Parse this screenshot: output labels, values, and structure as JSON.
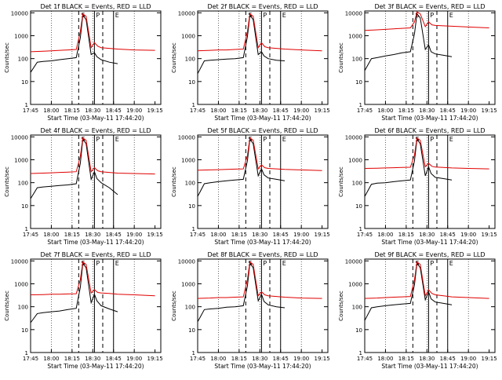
{
  "chart_data": {
    "type": "line",
    "x_tick_labels": [
      "17:45",
      "18:00",
      "18:15",
      "18:30",
      "18:45",
      "19:00",
      "19:15"
    ],
    "y_tick_labels": [
      "1",
      "10",
      "100",
      "1000",
      "10000"
    ],
    "ylabel": "Counts/sec",
    "xlabel": "Start Time (03-May-11 17:44:20)",
    "y_scale": "log",
    "ylim": [
      1,
      12000
    ],
    "grid": "dotted verticals at each x tick",
    "colors": {
      "events": "#000000",
      "lld": "#e00000"
    },
    "markers": {
      "s_label": "S",
      "p_label": "P",
      "e_label": "E"
    },
    "panels": [
      {
        "title": "Det 1f  BLACK = Events, RED = LLD",
        "series": [
          {
            "name": "Events",
            "x": [
              17.75,
              17.83,
              17.9,
              18.0,
              18.1,
              18.2,
              18.3,
              18.35,
              18.38,
              18.42,
              18.48,
              18.52,
              18.55,
              18.6,
              18.7,
              18.8
            ],
            "values": [
              25,
              70,
              75,
              80,
              90,
              100,
              110,
              800,
              8000,
              5000,
              150,
              180,
              120,
              90,
              70,
              60
            ]
          },
          {
            "name": "LLD",
            "x": [
              17.75,
              17.9,
              18.0,
              18.1,
              18.2,
              18.3,
              18.35,
              18.38,
              18.42,
              18.48,
              18.52,
              18.56,
              18.6,
              18.7,
              18.8,
              19.0,
              19.25
            ],
            "values": [
              200,
              210,
              220,
              230,
              240,
              250,
              1500,
              9000,
              7000,
              300,
              500,
              350,
              300,
              280,
              260,
              240,
              230
            ]
          }
        ]
      },
      {
        "title": "Det 2f  BLACK = Events, RED = LLD",
        "series": [
          {
            "name": "Events",
            "x": [
              17.75,
              17.83,
              17.9,
              18.0,
              18.1,
              18.2,
              18.3,
              18.35,
              18.38,
              18.42,
              18.48,
              18.52,
              18.55,
              18.6,
              18.7,
              18.8
            ],
            "values": [
              22,
              80,
              85,
              90,
              95,
              100,
              110,
              900,
              8000,
              5000,
              150,
              200,
              130,
              100,
              85,
              80
            ]
          },
          {
            "name": "LLD",
            "x": [
              17.75,
              17.9,
              18.0,
              18.1,
              18.2,
              18.3,
              18.35,
              18.38,
              18.42,
              18.48,
              18.52,
              18.56,
              18.6,
              18.7,
              18.8,
              19.0,
              19.25
            ],
            "values": [
              220,
              230,
              240,
              240,
              250,
              260,
              1500,
              9000,
              7000,
              300,
              500,
              330,
              300,
              280,
              260,
              240,
              220
            ]
          }
        ]
      },
      {
        "title": "Det 3f  BLACK = Events, RED = LLD",
        "series": [
          {
            "name": "Events",
            "x": [
              17.75,
              17.83,
              17.9,
              18.0,
              18.1,
              18.2,
              18.3,
              18.35,
              18.38,
              18.42,
              18.48,
              18.52,
              18.55,
              18.6,
              18.7,
              18.8
            ],
            "values": [
              30,
              100,
              110,
              130,
              150,
              180,
              200,
              1200,
              9000,
              6000,
              250,
              400,
              200,
              160,
              140,
              120
            ]
          },
          {
            "name": "LLD",
            "x": [
              17.75,
              17.9,
              18.0,
              18.1,
              18.2,
              18.3,
              18.35,
              18.38,
              18.42,
              18.48,
              18.52,
              18.56,
              18.6,
              18.7,
              18.8,
              19.0,
              19.25
            ],
            "values": [
              1700,
              1800,
              1900,
              2000,
              2100,
              2200,
              4000,
              11000,
              9000,
              2500,
              4000,
              3000,
              2800,
              2700,
              2600,
              2400,
              2200
            ]
          }
        ]
      },
      {
        "title": "Det 4f  BLACK = Events, RED = LLD",
        "series": [
          {
            "name": "Events",
            "x": [
              17.75,
              17.83,
              17.9,
              18.0,
              18.1,
              18.2,
              18.3,
              18.35,
              18.38,
              18.42,
              18.48,
              18.52,
              18.55,
              18.6,
              18.7,
              18.8
            ],
            "values": [
              20,
              60,
              65,
              70,
              75,
              80,
              90,
              700,
              8000,
              5000,
              140,
              300,
              150,
              100,
              60,
              30
            ]
          },
          {
            "name": "LLD",
            "x": [
              17.75,
              17.9,
              18.0,
              18.1,
              18.2,
              18.3,
              18.35,
              18.38,
              18.42,
              18.48,
              18.52,
              18.56,
              18.6,
              18.7,
              18.8,
              19.0,
              19.25
            ],
            "values": [
              250,
              260,
              270,
              280,
              290,
              300,
              1400,
              9000,
              7000,
              300,
              450,
              330,
              300,
              280,
              260,
              250,
              240
            ]
          }
        ]
      },
      {
        "title": "Det 5f  BLACK = Events, RED = LLD",
        "series": [
          {
            "name": "Events",
            "x": [
              17.75,
              17.83,
              17.9,
              18.0,
              18.1,
              18.2,
              18.3,
              18.35,
              18.38,
              18.42,
              18.48,
              18.52,
              18.55,
              18.6,
              18.7,
              18.8
            ],
            "values": [
              25,
              90,
              100,
              110,
              120,
              130,
              140,
              900,
              8000,
              5000,
              200,
              400,
              220,
              160,
              140,
              120
            ]
          },
          {
            "name": "LLD",
            "x": [
              17.75,
              17.9,
              18.0,
              18.1,
              18.2,
              18.3,
              18.35,
              18.38,
              18.42,
              18.48,
              18.52,
              18.56,
              18.6,
              18.7,
              18.8,
              19.0,
              19.25
            ],
            "values": [
              350,
              360,
              370,
              380,
              390,
              400,
              1500,
              9000,
              7000,
              400,
              600,
              450,
              420,
              400,
              380,
              360,
              340
            ]
          }
        ]
      },
      {
        "title": "Det 6f  BLACK = Events, RED = LLD",
        "series": [
          {
            "name": "Events",
            "x": [
              17.75,
              17.83,
              17.9,
              18.0,
              18.1,
              18.2,
              18.3,
              18.35,
              18.38,
              18.42,
              18.48,
              18.52,
              18.55,
              18.6,
              18.7,
              18.8
            ],
            "values": [
              25,
              85,
              95,
              100,
              110,
              120,
              130,
              900,
              8000,
              5000,
              200,
              500,
              250,
              170,
              150,
              130
            ]
          },
          {
            "name": "LLD",
            "x": [
              17.75,
              17.9,
              18.0,
              18.1,
              18.2,
              18.3,
              18.35,
              18.38,
              18.42,
              18.48,
              18.52,
              18.56,
              18.6,
              18.7,
              18.8,
              19.0,
              19.25
            ],
            "values": [
              420,
              430,
              440,
              450,
              460,
              470,
              1600,
              9000,
              7000,
              500,
              700,
              520,
              480,
              460,
              440,
              420,
              400
            ]
          }
        ]
      },
      {
        "title": "Det 7f  BLACK = Events, RED = LLD",
        "series": [
          {
            "name": "Events",
            "x": [
              17.75,
              17.83,
              17.9,
              18.0,
              18.1,
              18.2,
              18.3,
              18.35,
              18.38,
              18.42,
              18.48,
              18.52,
              18.55,
              18.6,
              18.7,
              18.8
            ],
            "values": [
              20,
              50,
              55,
              60,
              65,
              75,
              85,
              700,
              8000,
              5000,
              150,
              350,
              180,
              110,
              80,
              60
            ]
          },
          {
            "name": "LLD",
            "x": [
              17.75,
              17.9,
              18.0,
              18.1,
              18.2,
              18.3,
              18.35,
              18.38,
              18.42,
              18.48,
              18.52,
              18.56,
              18.6,
              18.7,
              18.8,
              19.0,
              19.25
            ],
            "values": [
              330,
              340,
              350,
              350,
              360,
              370,
              1500,
              9000,
              7000,
              400,
              550,
              420,
              400,
              380,
              350,
              330,
              300
            ]
          }
        ]
      },
      {
        "title": "Det 8f  BLACK = Events, RED = LLD",
        "series": [
          {
            "name": "Events",
            "x": [
              17.75,
              17.83,
              17.9,
              18.0,
              18.1,
              18.2,
              18.3,
              18.35,
              18.38,
              18.42,
              18.48,
              18.52,
              18.55,
              18.6,
              18.7,
              18.8
            ],
            "values": [
              22,
              75,
              80,
              85,
              95,
              100,
              110,
              800,
              8000,
              5000,
              180,
              350,
              170,
              120,
              100,
              90
            ]
          },
          {
            "name": "LLD",
            "x": [
              17.75,
              17.9,
              18.0,
              18.1,
              18.2,
              18.3,
              18.35,
              18.38,
              18.42,
              18.48,
              18.52,
              18.56,
              18.6,
              18.7,
              18.8,
              19.0,
              19.25
            ],
            "values": [
              230,
              240,
              250,
              250,
              260,
              270,
              1500,
              9000,
              7000,
              300,
              450,
              330,
              300,
              280,
              260,
              240,
              230
            ]
          }
        ]
      },
      {
        "title": "Det 9f  BLACK = Events, RED = LLD",
        "series": [
          {
            "name": "Events",
            "x": [
              17.75,
              17.83,
              17.9,
              18.0,
              18.1,
              18.2,
              18.3,
              18.35,
              18.38,
              18.42,
              18.48,
              18.52,
              18.55,
              18.6,
              18.7,
              18.8
            ],
            "values": [
              25,
              90,
              100,
              110,
              120,
              130,
              140,
              900,
              8000,
              5000,
              200,
              450,
              220,
              160,
              140,
              120
            ]
          },
          {
            "name": "LLD",
            "x": [
              17.75,
              17.9,
              18.0,
              18.1,
              18.2,
              18.3,
              18.35,
              18.38,
              18.42,
              18.48,
              18.52,
              18.56,
              18.6,
              18.7,
              18.8,
              19.0,
              19.25
            ],
            "values": [
              230,
              240,
              250,
              260,
              270,
              280,
              1500,
              9000,
              7000,
              300,
              550,
              380,
              330,
              300,
              270,
              250,
              230
            ]
          }
        ]
      }
    ]
  }
}
